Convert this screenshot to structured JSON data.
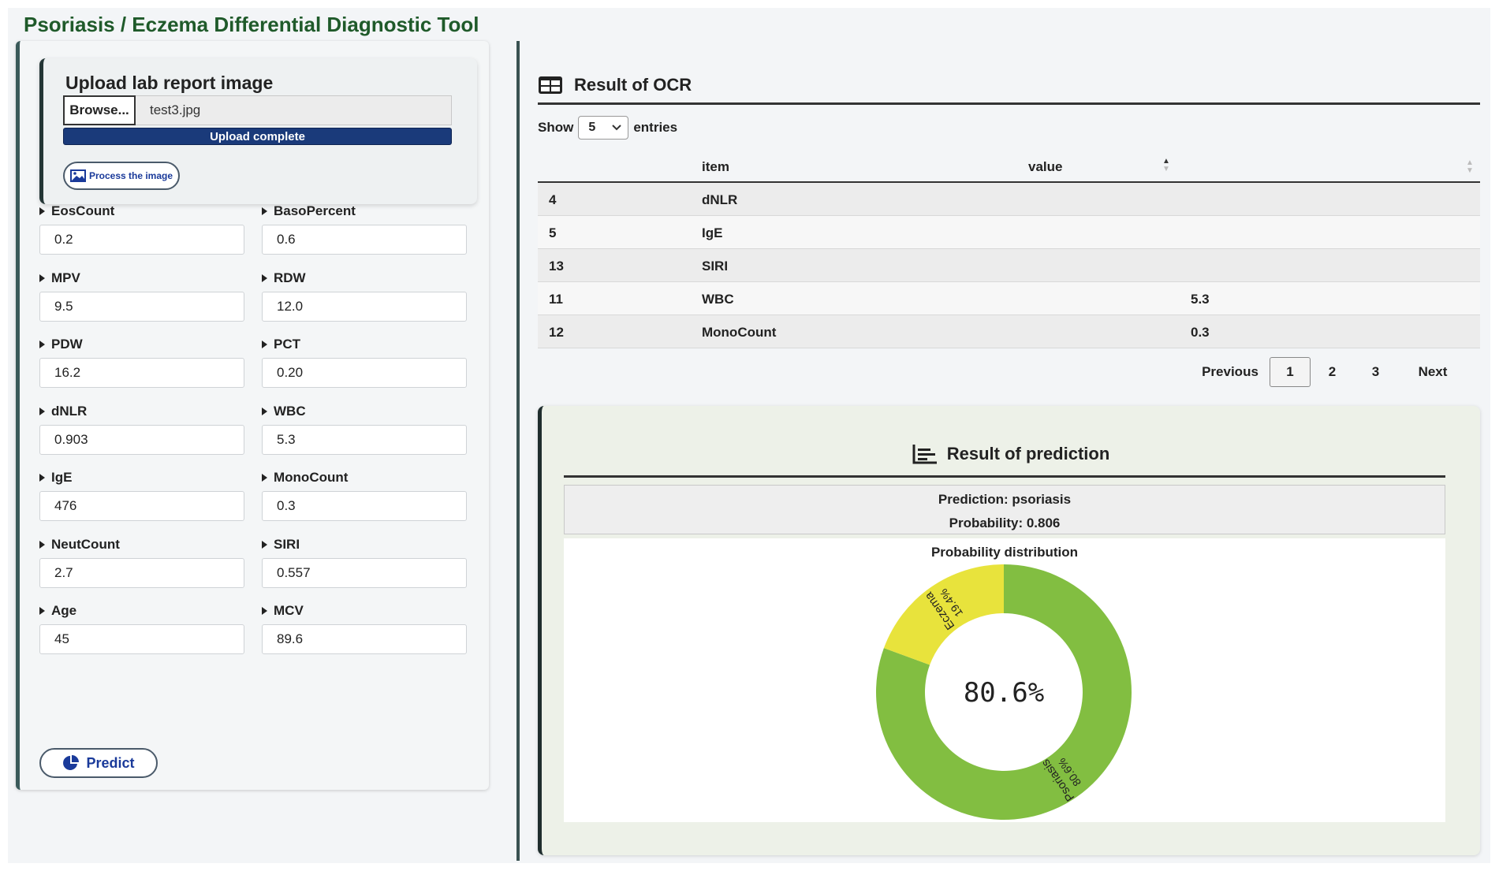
{
  "app": {
    "title": "Psoriasis / Eczema Differential Diagnostic Tool"
  },
  "upload": {
    "title": "Upload lab report image",
    "browse_label": "Browse...",
    "file_name": "test3.jpg",
    "progress_label": "Upload complete",
    "progress_value": 1.0,
    "process_label": "Process the image"
  },
  "fields": [
    {
      "label": "EosCount",
      "value": "0.2"
    },
    {
      "label": "BasoPercent",
      "value": "0.6"
    },
    {
      "label": "MPV",
      "value": "9.5"
    },
    {
      "label": "RDW",
      "value": "12.0"
    },
    {
      "label": "PDW",
      "value": "16.2"
    },
    {
      "label": "PCT",
      "value": "0.20"
    },
    {
      "label": "dNLR",
      "value": "0.903"
    },
    {
      "label": "WBC",
      "value": "5.3"
    },
    {
      "label": "IgE",
      "value": "476"
    },
    {
      "label": "MonoCount",
      "value": "0.3"
    },
    {
      "label": "NeutCount",
      "value": "2.7"
    },
    {
      "label": "SIRI",
      "value": "0.557"
    },
    {
      "label": "Age",
      "value": "45"
    },
    {
      "label": "MCV",
      "value": "89.6"
    }
  ],
  "predict_label": "Predict",
  "ocr": {
    "title": "Result of OCR",
    "show_label": "Show",
    "show_value": "5",
    "entries_label": "entries",
    "columns": [
      "item",
      "value"
    ],
    "rows": [
      {
        "index": "4",
        "item": "dNLR",
        "value": ""
      },
      {
        "index": "5",
        "item": "IgE",
        "value": ""
      },
      {
        "index": "13",
        "item": "SIRI",
        "value": ""
      },
      {
        "index": "11",
        "item": "WBC",
        "value": "5.3"
      },
      {
        "index": "12",
        "item": "MonoCount",
        "value": "0.3"
      }
    ],
    "pager": {
      "previous": "Previous",
      "pages": [
        "1",
        "2",
        "3"
      ],
      "active": "1",
      "next": "Next"
    }
  },
  "prediction": {
    "title": "Result of prediction",
    "prediction_line": "Prediction: psoriasis",
    "probability_line": "Probability: 0.806",
    "chart_title": "Probability distribution",
    "center_label": "80.6%"
  },
  "chart_data": {
    "type": "pie",
    "title": "Probability distribution",
    "categories": [
      "Psoriasis",
      "Eczema"
    ],
    "values": [
      80.6,
      19.4
    ],
    "labels": [
      "80.6%",
      "19.4%"
    ],
    "colors": [
      "#82be41",
      "#e8e33c"
    ],
    "center_text": "80.6%"
  },
  "colors": {
    "title_green": "#1f5a2a",
    "progress_blue": "#1a3a7a",
    "button_text": "#1a3a9a"
  }
}
